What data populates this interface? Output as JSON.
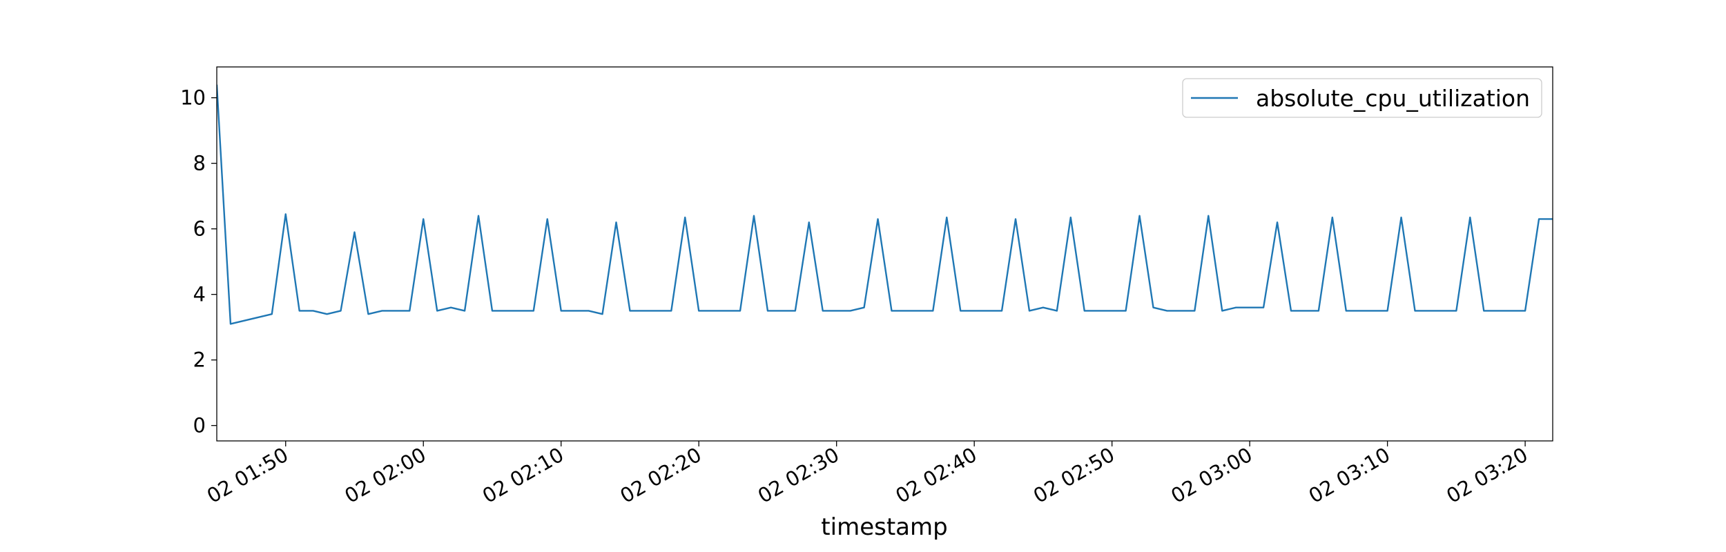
{
  "chart_data": {
    "type": "line",
    "xlabel": "timestamp",
    "x": [
      "02 01:45",
      "02 01:46",
      "02 01:47",
      "02 01:48",
      "02 01:49",
      "02 01:50",
      "02 01:51",
      "02 01:52",
      "02 01:53",
      "02 01:54",
      "02 01:55",
      "02 01:56",
      "02 01:57",
      "02 01:58",
      "02 01:59",
      "02 02:00",
      "02 02:01",
      "02 02:02",
      "02 02:03",
      "02 02:04",
      "02 02:05",
      "02 02:06",
      "02 02:07",
      "02 02:08",
      "02 02:09",
      "02 02:10",
      "02 02:11",
      "02 02:12",
      "02 02:13",
      "02 02:14",
      "02 02:15",
      "02 02:16",
      "02 02:17",
      "02 02:18",
      "02 02:19",
      "02 02:20",
      "02 02:21",
      "02 02:22",
      "02 02:23",
      "02 02:24",
      "02 02:25",
      "02 02:26",
      "02 02:27",
      "02 02:28",
      "02 02:29",
      "02 02:30",
      "02 02:31",
      "02 02:32",
      "02 02:33",
      "02 02:34",
      "02 02:35",
      "02 02:36",
      "02 02:37",
      "02 02:38",
      "02 02:39",
      "02 02:40",
      "02 02:41",
      "02 02:42",
      "02 02:43",
      "02 02:44",
      "02 02:45",
      "02 02:46",
      "02 02:47",
      "02 02:48",
      "02 02:49",
      "02 02:50",
      "02 02:51",
      "02 02:52",
      "02 02:53",
      "02 02:54",
      "02 02:55",
      "02 02:56",
      "02 02:57",
      "02 02:58",
      "02 02:59",
      "02 03:00",
      "02 03:01",
      "02 03:02",
      "02 03:03",
      "02 03:04",
      "02 03:05",
      "02 03:06",
      "02 03:07",
      "02 03:08",
      "02 03:09",
      "02 03:10",
      "02 03:11",
      "02 03:12",
      "02 03:13",
      "02 03:14",
      "02 03:15",
      "02 03:16",
      "02 03:17",
      "02 03:18",
      "02 03:19",
      "02 03:20",
      "02 03:21",
      "02 03:22"
    ],
    "series": [
      {
        "name": "absolute_cpu_utilization",
        "color": "#1f77b4",
        "values": [
          10.4,
          3.1,
          3.2,
          3.3,
          3.4,
          6.45,
          3.5,
          3.5,
          3.4,
          3.5,
          5.9,
          3.4,
          3.5,
          3.5,
          3.5,
          6.3,
          3.5,
          3.6,
          3.5,
          6.4,
          3.5,
          3.5,
          3.5,
          3.5,
          6.3,
          3.5,
          3.5,
          3.5,
          3.4,
          6.2,
          3.5,
          3.5,
          3.5,
          3.5,
          6.35,
          3.5,
          3.5,
          3.5,
          3.5,
          6.4,
          3.5,
          3.5,
          3.5,
          6.2,
          3.5,
          3.5,
          3.5,
          3.6,
          6.3,
          3.5,
          3.5,
          3.5,
          3.5,
          6.35,
          3.5,
          3.5,
          3.5,
          3.5,
          6.3,
          3.5,
          3.6,
          3.5,
          6.35,
          3.5,
          3.5,
          3.5,
          3.5,
          6.4,
          3.6,
          3.5,
          3.5,
          3.5,
          6.4,
          3.5,
          3.6,
          3.6,
          3.6,
          6.2,
          3.5,
          3.5,
          3.5,
          6.35,
          3.5,
          3.5,
          3.5,
          3.5,
          6.35,
          3.5,
          3.5,
          3.5,
          3.5,
          6.35,
          3.5,
          3.5,
          3.5,
          3.5,
          6.3,
          6.3
        ]
      }
    ],
    "xlim": [
      "02 01:45",
      "02 03:22"
    ],
    "xticks": [
      "02 01:50",
      "02 02:00",
      "02 02:10",
      "02 02:20",
      "02 02:30",
      "02 02:40",
      "02 02:50",
      "02 03:00",
      "02 03:10",
      "02 03:20"
    ],
    "ylim": [
      -0.47,
      10.94
    ],
    "yticks": [
      0,
      2,
      4,
      6,
      8,
      10
    ],
    "legend": "upper right",
    "grid": false
  }
}
